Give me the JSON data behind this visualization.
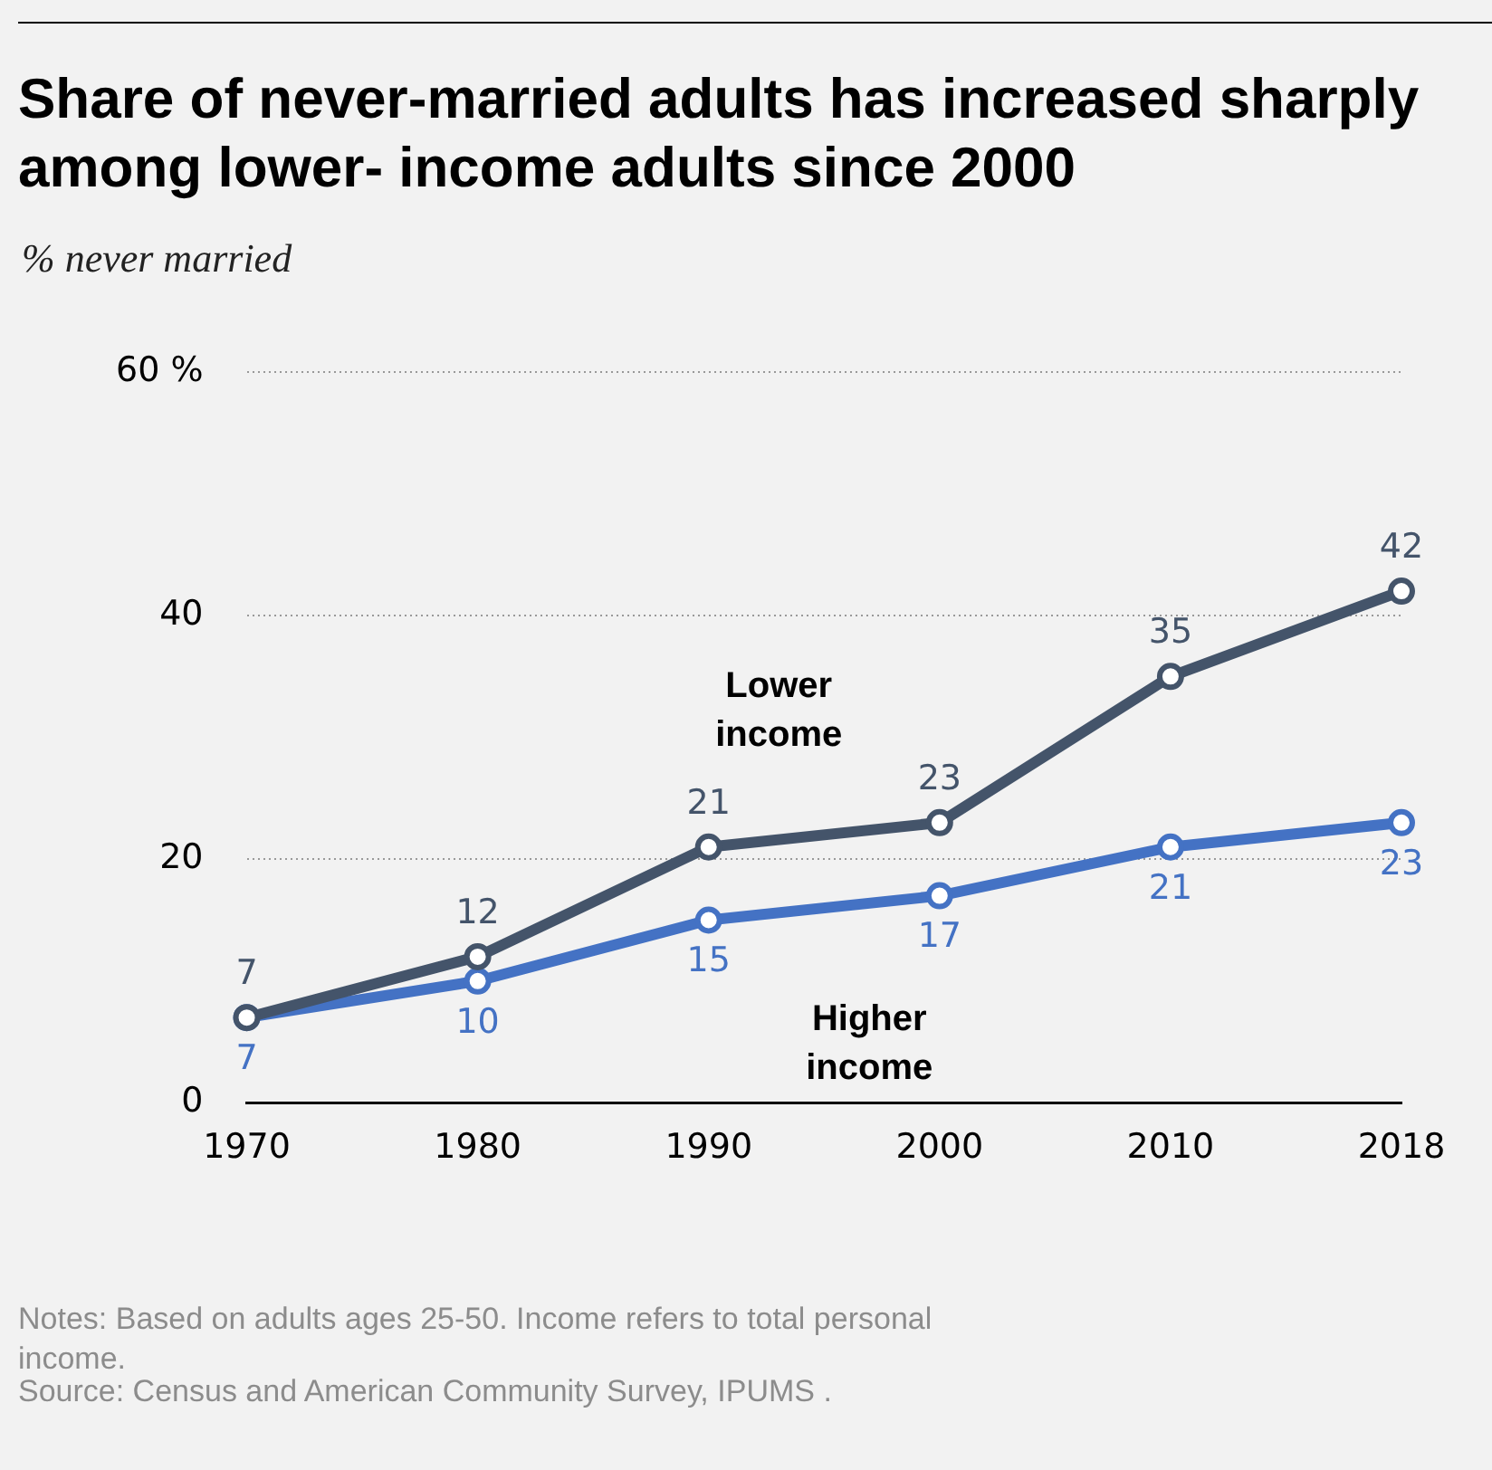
{
  "chart_data": {
    "type": "line",
    "title": "Share of never-married adults has increased sharply among lower- income adults since 2000",
    "subtitle": "% never married",
    "categories": [
      "1970",
      "1980",
      "1990",
      "2000",
      "2010",
      "2018"
    ],
    "series": [
      {
        "name": "Lower income",
        "color": "#44546a",
        "values": [
          7,
          12,
          21,
          23,
          35,
          42
        ]
      },
      {
        "name": "Higher income",
        "color": "#4472c4",
        "values": [
          7,
          10,
          15,
          17,
          21,
          23
        ]
      }
    ],
    "ylim": [
      0,
      60
    ],
    "yticks": [
      0,
      20,
      40,
      {
        "value": 60,
        "label": "60 %"
      }
    ],
    "grid": "y",
    "legend": false,
    "marker": "circle",
    "line_style": "solid",
    "data_labels": true,
    "annotations": [
      "Notes: Based on adults ages 25-50. Income refers to total personal income.",
      "Source: Census and American Community Survey, IPUMS ."
    ]
  }
}
